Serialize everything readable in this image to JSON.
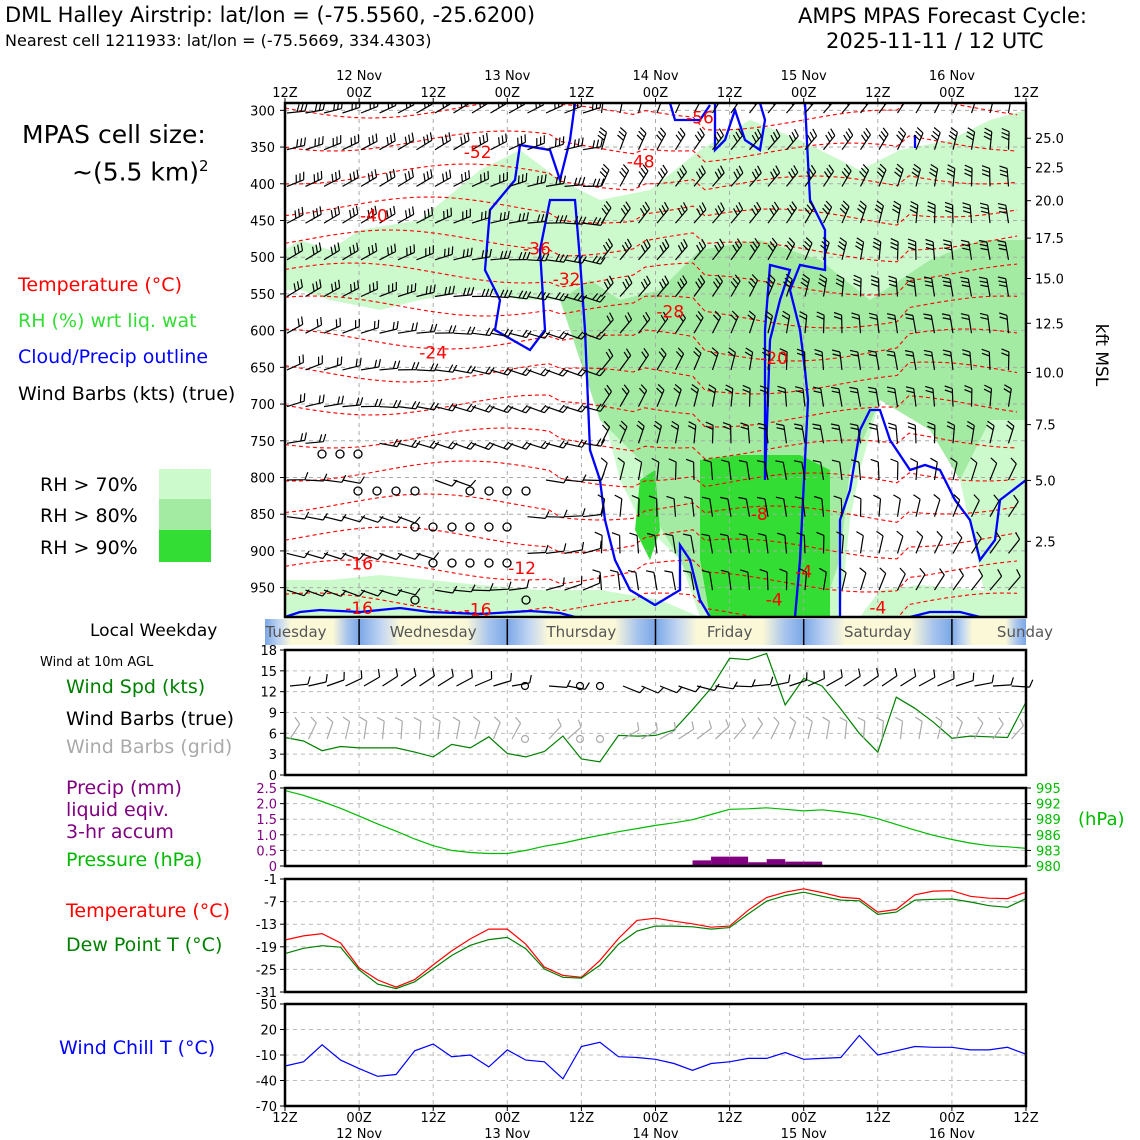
{
  "header": {
    "title": "DML Halley Airstrip: lat/lon = (-75.5560, -25.6200)",
    "subtitle": "Nearest cell 1211933: lat/lon = (-75.5669, 334.4303)",
    "cycle_line1": "AMPS MPAS Forecast Cycle:",
    "cycle_line2": "2025-11-11 / 12 UTC"
  },
  "sidebar": {
    "cell_size_line1": "MPAS cell size:",
    "cell_size_line2": "~(5.5 km)",
    "cell_size_sup": "2",
    "legend_temperature": "Temperature (°C)",
    "legend_rh": "RH (%) wrt liq. wat",
    "legend_cloud": "Cloud/Precip outline",
    "legend_wind": "Wind Barbs (kts) (true)",
    "rh_levels": [
      "RH > 70%",
      "RH > 80%",
      "RH > 90%"
    ],
    "local_weekday": "Local Weekday",
    "wind_10m": "Wind at 10m AGL",
    "wind_spd": "Wind Spd (kts)",
    "wind_barbs_true": "Wind Barbs (true)",
    "wind_barbs_grid": "Wind Barbs (grid)",
    "precip_line1": "Precip (mm)",
    "precip_line2": "liquid eqiv.",
    "precip_line3": "3-hr accum",
    "pressure": "Pressure (hPa)",
    "temperature": "Temperature (°C)",
    "dewpoint": "Dew Point T (°C)",
    "windchill": "Wind Chill T (°C)"
  },
  "colors": {
    "temperature": "#ff0000",
    "rh_label": "#33dd33",
    "cloud": "#0000ff",
    "rh70": "#ccfacc",
    "rh80": "#a3eba3",
    "rh90": "#33dd33",
    "wind_spd": "#008000",
    "wind_grid": "#aaaaaa",
    "precip": "#800080",
    "pressure": "#00bb00",
    "dewpoint": "#008000",
    "windchill": "#0000ff",
    "weekday_blue": "#7aa7e6",
    "weekday_cream": "#fbf8d8"
  },
  "chart_data": [
    {
      "type": "heatmap",
      "title": "",
      "time_ticks": [
        "12Z",
        "00Z",
        "12Z",
        "00Z",
        "12Z",
        "00Z",
        "12Z",
        "00Z",
        "12Z",
        "00Z",
        "12Z"
      ],
      "date_ticks": [
        "12 Nov",
        "13 Nov",
        "14 Nov",
        "15 Nov",
        "16 Nov"
      ],
      "pressure_levels_hPa": [
        300,
        350,
        400,
        450,
        500,
        550,
        600,
        650,
        700,
        750,
        800,
        850,
        900,
        950
      ],
      "ylim_hPa": [
        990,
        290
      ],
      "ylabel_right": "kft MSL",
      "height_kft_ticks": [
        "25.0",
        "22.5",
        "20.0",
        "17.5",
        "15.0",
        "12.5",
        "10.0",
        "7.5",
        "5.0",
        "2.5"
      ],
      "height_kft_pressure": [
        338,
        378,
        423,
        474,
        529,
        590,
        657,
        728,
        804,
        887
      ],
      "temperature_contour_labels": [
        {
          "text": "-56",
          "t": 2.8,
          "p": 310
        },
        {
          "text": "-52",
          "t": 1.3,
          "p": 357
        },
        {
          "text": "-48",
          "t": 2.4,
          "p": 370
        },
        {
          "text": "-40",
          "t": 0.6,
          "p": 443
        },
        {
          "text": "-36",
          "t": 1.7,
          "p": 488
        },
        {
          "text": "-32",
          "t": 1.9,
          "p": 530
        },
        {
          "text": "-28",
          "t": 2.6,
          "p": 574
        },
        {
          "text": "-24",
          "t": 1.0,
          "p": 630
        },
        {
          "text": "-20",
          "t": 3.3,
          "p": 637
        },
        {
          "text": "-16",
          "t": 0.5,
          "p": 917
        },
        {
          "text": "-12",
          "t": 1.6,
          "p": 923
        },
        {
          "text": "-8",
          "t": 3.2,
          "p": 850
        },
        {
          "text": "-4",
          "t": 3.5,
          "p": 928
        },
        {
          "text": "-4",
          "t": 3.3,
          "p": 966
        },
        {
          "text": "-4",
          "t": 4.0,
          "p": 977
        },
        {
          "text": "-16",
          "t": 1.3,
          "p": 980
        },
        {
          "text": "-16",
          "t": 0.5,
          "p": 978
        }
      ]
    },
    {
      "type": "line",
      "title": "",
      "ylim": [
        0,
        18
      ],
      "yticks": [
        0,
        3,
        6,
        9,
        12,
        15,
        18
      ],
      "x_hours": [
        0,
        3,
        6,
        9,
        12,
        15,
        18,
        21,
        24,
        27,
        30,
        33,
        36,
        39,
        42,
        45,
        48,
        51,
        54,
        57,
        60,
        63,
        66,
        69,
        72,
        75,
        78,
        81,
        84,
        87,
        90,
        93,
        96,
        99,
        102,
        105,
        108,
        111,
        114,
        117,
        120
      ],
      "series": [
        {
          "values": [
            5.4,
            4.9,
            3.5,
            4.1,
            3.9,
            3.9,
            3.9,
            3.3,
            2.6,
            4.4,
            3.9,
            5.5,
            3.1,
            2.6,
            3.4,
            5.6,
            2.3,
            1.9,
            5.7,
            5.6,
            5.7,
            6.5,
            9.4,
            12.5,
            16.8,
            16.6,
            17.5,
            10.1,
            13.9,
            12.8,
            9.5,
            6.0,
            3.3,
            11.2,
            9.6,
            7.6,
            5.3,
            5.6,
            5.5,
            5.4,
            10.5
          ]
        }
      ]
    },
    {
      "type": "bar",
      "title": "",
      "ylim": [
        0,
        2.5
      ],
      "yticks": [
        0,
        0.5,
        1.0,
        1.5,
        2.0,
        2.5
      ],
      "yticklabels": [
        "0",
        "0.5",
        "1.0",
        "1.5",
        "2.0",
        "2.5"
      ],
      "bar_hours": [
        66,
        69,
        72,
        75,
        78,
        81,
        84
      ],
      "bar_values": [
        0.18,
        0.3,
        0.3,
        0.12,
        0.22,
        0.14,
        0.14
      ],
      "pressure_ylim": [
        980,
        995
      ],
      "pressure_ticks": [
        980,
        983,
        986,
        989,
        992,
        995
      ],
      "pressure_unit": "(hPa)",
      "pressure_values": [
        994.5,
        993.6,
        992.4,
        991.1,
        989.6,
        988.1,
        986.7,
        985.2,
        983.9,
        983.0,
        982.6,
        982.4,
        982.4,
        983.0,
        983.8,
        984.4,
        985.2,
        985.9,
        986.6,
        987.2,
        987.8,
        988.3,
        988.9,
        989.9,
        990.9,
        991.0,
        991.2,
        990.9,
        990.6,
        990.8,
        990.4,
        989.9,
        989.1,
        988.0,
        986.9,
        985.9,
        985.1,
        984.4,
        983.9,
        983.7,
        983.4
      ]
    },
    {
      "type": "line",
      "title": "",
      "ylim": [
        -31,
        -1
      ],
      "yticks": [
        -31,
        -25,
        -19,
        -13,
        -7,
        -1
      ],
      "series": [
        {
          "values": [
            -17.2,
            -16.1,
            -15.5,
            -18.0,
            -24.6,
            -27.8,
            -29.7,
            -27.7,
            -23.8,
            -20.1,
            -16.9,
            -14.3,
            -14.3,
            -18.3,
            -24.4,
            -26.6,
            -27.1,
            -22.6,
            -16.8,
            -12.0,
            -11.4,
            -12.2,
            -12.9,
            -13.8,
            -13.5,
            -9.3,
            -5.9,
            -4.5,
            -3.6,
            -4.6,
            -5.8,
            -6.2,
            -9.8,
            -9.1,
            -5.2,
            -4.2,
            -4.1,
            -5.6,
            -6.1,
            -6.2,
            -4.5
          ]
        },
        {
          "values": [
            -20.8,
            -19.4,
            -18.7,
            -19.1,
            -25.1,
            -28.9,
            -30.1,
            -28.3,
            -24.8,
            -21.3,
            -18.6,
            -17.1,
            -16.5,
            -19.5,
            -24.9,
            -27.1,
            -27.3,
            -23.9,
            -18.3,
            -14.8,
            -13.5,
            -13.5,
            -13.7,
            -14.3,
            -13.9,
            -10.3,
            -6.9,
            -5.4,
            -4.5,
            -5.6,
            -6.6,
            -6.8,
            -10.4,
            -9.8,
            -6.6,
            -6.4,
            -6.3,
            -7.1,
            -8.1,
            -8.5,
            -6.2
          ]
        }
      ]
    },
    {
      "type": "line",
      "title": "",
      "ylim": [
        -70,
        50
      ],
      "yticks": [
        -70,
        -40,
        -10,
        20,
        50
      ],
      "series": [
        {
          "values": [
            -23,
            -18,
            2,
            -16,
            -26,
            -35,
            -33,
            -5,
            3,
            -12,
            -10,
            -24,
            -4,
            -16,
            -18,
            -38,
            0,
            5,
            -12,
            -13,
            -15,
            -20,
            -28,
            -20,
            -18,
            -14,
            -14,
            -7,
            -15,
            -14,
            -13,
            13,
            -10,
            -5,
            0,
            -1,
            -1,
            -4,
            -4,
            -1,
            -9
          ]
        }
      ]
    },
    {
      "type": "table",
      "title": "",
      "weekdays": [
        "Tuesday",
        "Wednesday",
        "Thursday",
        "Friday",
        "Saturday",
        "Sunday"
      ]
    }
  ]
}
